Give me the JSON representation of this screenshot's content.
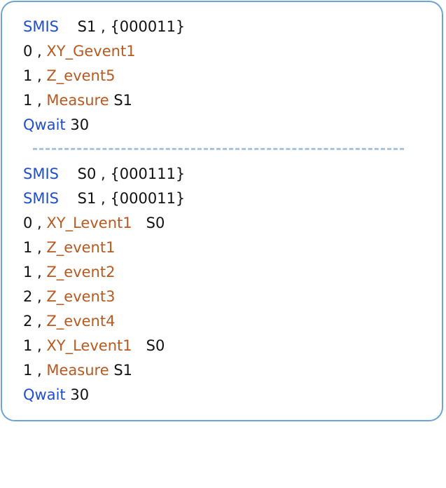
{
  "block1": [
    {
      "kw": "SMIS",
      "rest": "    S1 , {000011}"
    },
    {
      "pre": "0 , ",
      "ev": "XY_Gevent1",
      "post": ""
    },
    {
      "pre": "1 , ",
      "ev": "Z_event5",
      "post": ""
    },
    {
      "pre": "1 , ",
      "ev": "Measure",
      "post": " S1"
    },
    {
      "kw": "Qwait",
      "rest": " 30"
    }
  ],
  "block2": [
    {
      "kw": "SMIS",
      "rest": "    S0 , {000111}"
    },
    {
      "kw": "SMIS",
      "rest": "    S1 , {000011}"
    },
    {
      "pre": "0 , ",
      "ev": "XY_Levent1",
      "post": "   S0"
    },
    {
      "pre": "1 , ",
      "ev": "Z_event1",
      "post": ""
    },
    {
      "pre": "1 , ",
      "ev": "Z_event2",
      "post": ""
    },
    {
      "pre": "2 , ",
      "ev": "Z_event3",
      "post": ""
    },
    {
      "pre": "2 , ",
      "ev": "Z_event4",
      "post": ""
    },
    {
      "pre": "1 , ",
      "ev": "XY_Levent1",
      "post": "   S0"
    },
    {
      "pre": "1 , ",
      "ev": "Measure",
      "post": " S1"
    },
    {
      "kw": "Qwait",
      "rest": " 30"
    }
  ],
  "colors": {
    "keyword": "#1f4fd0",
    "event": "#b8591f",
    "text": "#111111",
    "border": "#6fa3d3",
    "divider": "#a9c6de"
  }
}
